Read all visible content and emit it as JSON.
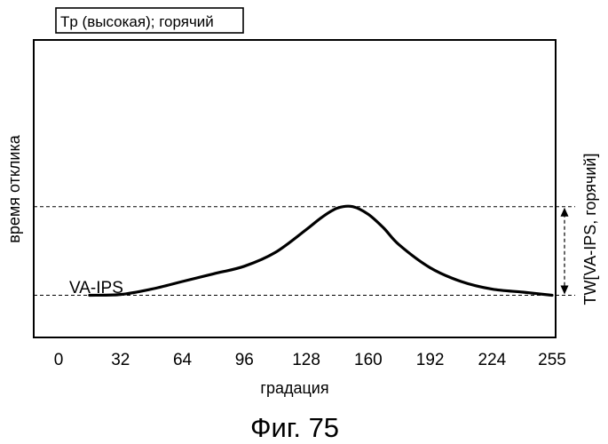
{
  "chart_data": {
    "type": "line",
    "title": "Tp (высокая); горячий",
    "xlabel": "градация",
    "ylabel": "время отклика",
    "xlim": [
      0,
      255
    ],
    "ylim": [
      0,
      100
    ],
    "x_ticks": [
      "0",
      "32",
      "64",
      "96",
      "128",
      "160",
      "192",
      "224",
      "255"
    ],
    "grid": false,
    "series": [
      {
        "name": "VA-IPS",
        "x": [
          16,
          32,
          48,
          64,
          80,
          96,
          112,
          128,
          136,
          144,
          152,
          160,
          168,
          176,
          192,
          208,
          224,
          240,
          255
        ],
        "y": [
          16,
          16.5,
          20,
          25,
          30,
          35,
          44,
          59,
          67,
          73,
          74,
          69,
          60,
          49,
          34,
          25,
          20,
          18,
          16
        ]
      }
    ],
    "reference_lines": [
      {
        "axis": "y",
        "value": 74
      },
      {
        "axis": "y",
        "value": 16
      }
    ],
    "annotations": {
      "series_label": "VA-IPS",
      "span_label": "TW[VA-IPS, горячий]"
    },
    "caption": "Фиг. 75"
  }
}
